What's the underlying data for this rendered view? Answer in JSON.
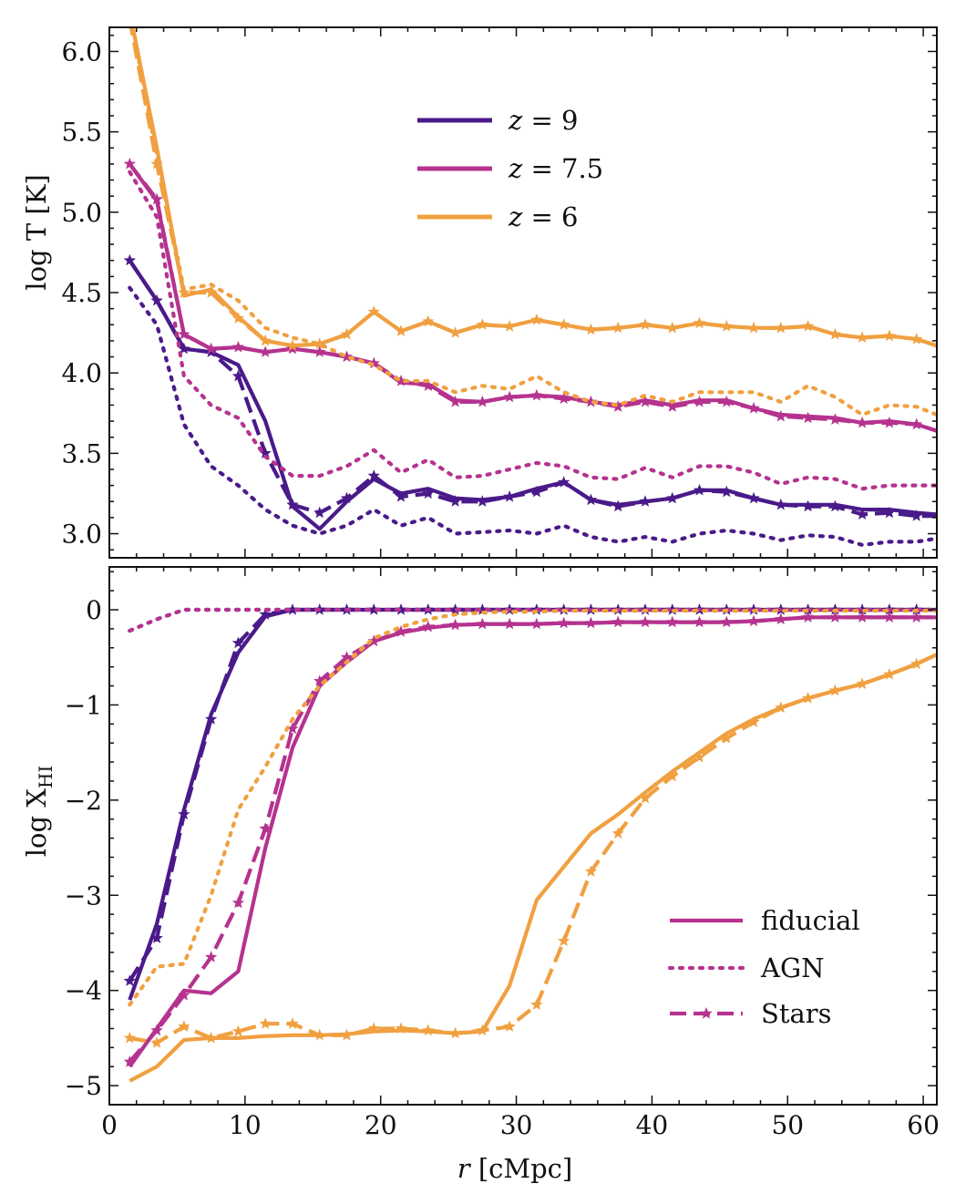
{
  "chart_data": [
    {
      "type": "line",
      "panel": "top",
      "ylabel": "log T [K]",
      "xlim": [
        0,
        61
      ],
      "ylim": [
        2.85,
        6.15
      ],
      "yticks": [
        3.0,
        3.5,
        4.0,
        4.5,
        5.0,
        5.5,
        6.0
      ],
      "ytick_labels": [
        "3.0",
        "3.5",
        "4.0",
        "4.5",
        "5.0",
        "5.5",
        "6.0"
      ],
      "x": [
        1.5,
        3.5,
        5.5,
        7.5,
        9.5,
        11.5,
        13.5,
        15.5,
        17.5,
        19.5,
        21.5,
        23.5,
        25.5,
        27.5,
        29.5,
        31.5,
        33.5,
        35.5,
        37.5,
        39.5,
        41.5,
        43.5,
        45.5,
        47.5,
        49.5,
        51.5,
        53.5,
        55.5,
        57.5,
        59.5,
        61.0
      ],
      "legend": {
        "position": "top-center",
        "entries": [
          {
            "label": "z=9",
            "label_main": "z",
            "label_rest": " = 9",
            "color": "#4a1a8a"
          },
          {
            "label": "z=7.5",
            "label_main": "z",
            "label_rest": " = 7.5",
            "color": "#b5338f"
          },
          {
            "label": "z=6",
            "label_main": "z",
            "label_rest": " = 6",
            "color": "#f0a040"
          }
        ]
      },
      "series": [
        {
          "redshift": "z=9",
          "color": "#4a1a8a",
          "model": "fiducial",
          "style": "solid",
          "values": [
            4.7,
            4.45,
            4.15,
            4.13,
            4.05,
            3.7,
            3.17,
            3.03,
            3.2,
            3.34,
            3.25,
            3.28,
            3.22,
            3.21,
            3.23,
            3.28,
            3.32,
            3.21,
            3.18,
            3.2,
            3.22,
            3.27,
            3.27,
            3.22,
            3.18,
            3.18,
            3.18,
            3.15,
            3.15,
            3.13,
            3.12
          ]
        },
        {
          "redshift": "z=9",
          "color": "#4a1a8a",
          "model": "AGN",
          "style": "dotted",
          "values": [
            4.53,
            4.3,
            3.68,
            3.42,
            3.3,
            3.15,
            3.05,
            3.0,
            3.05,
            3.15,
            3.05,
            3.1,
            3.0,
            3.01,
            3.02,
            3.0,
            3.05,
            2.98,
            2.95,
            2.98,
            2.95,
            3.0,
            3.02,
            3.0,
            2.96,
            2.99,
            2.98,
            2.93,
            2.95,
            2.95,
            2.97
          ]
        },
        {
          "redshift": "z=9",
          "color": "#4a1a8a",
          "model": "Stars",
          "style": "dashed",
          "values": [
            4.7,
            4.45,
            4.15,
            4.13,
            3.98,
            3.5,
            3.18,
            3.13,
            3.22,
            3.36,
            3.23,
            3.25,
            3.2,
            3.2,
            3.23,
            3.26,
            3.32,
            3.21,
            3.17,
            3.2,
            3.22,
            3.27,
            3.26,
            3.22,
            3.18,
            3.17,
            3.17,
            3.12,
            3.13,
            3.11,
            3.11
          ]
        },
        {
          "redshift": "z=7.5",
          "color": "#b5338f",
          "model": "fiducial",
          "style": "solid",
          "values": [
            5.3,
            5.07,
            4.24,
            4.15,
            4.16,
            4.13,
            4.15,
            4.13,
            4.1,
            4.06,
            3.94,
            3.93,
            3.83,
            3.82,
            3.85,
            3.86,
            3.85,
            3.82,
            3.8,
            3.83,
            3.8,
            3.83,
            3.83,
            3.78,
            3.74,
            3.73,
            3.72,
            3.69,
            3.7,
            3.68,
            3.64
          ]
        },
        {
          "redshift": "z=7.5",
          "color": "#b5338f",
          "model": "AGN",
          "style": "dotted",
          "values": [
            5.25,
            4.97,
            3.98,
            3.8,
            3.72,
            3.48,
            3.36,
            3.36,
            3.42,
            3.52,
            3.38,
            3.46,
            3.35,
            3.36,
            3.4,
            3.44,
            3.42,
            3.35,
            3.34,
            3.41,
            3.35,
            3.42,
            3.42,
            3.38,
            3.31,
            3.35,
            3.34,
            3.28,
            3.3,
            3.3,
            3.3
          ]
        },
        {
          "redshift": "z=7.5",
          "color": "#b5338f",
          "model": "Stars",
          "style": "dashed",
          "values": [
            5.3,
            5.08,
            4.24,
            4.15,
            4.16,
            4.13,
            4.15,
            4.13,
            4.1,
            4.06,
            3.95,
            3.92,
            3.82,
            3.82,
            3.85,
            3.86,
            3.84,
            3.82,
            3.79,
            3.82,
            3.79,
            3.82,
            3.82,
            3.78,
            3.73,
            3.72,
            3.71,
            3.69,
            3.69,
            3.68,
            3.64
          ]
        },
        {
          "redshift": "z=6",
          "color": "#f0a040",
          "model": "fiducial",
          "style": "solid",
          "values": [
            6.25,
            5.4,
            4.48,
            4.52,
            4.35,
            4.2,
            4.17,
            4.18,
            4.24,
            4.38,
            4.26,
            4.32,
            4.25,
            4.3,
            4.29,
            4.33,
            4.3,
            4.27,
            4.28,
            4.3,
            4.28,
            4.31,
            4.29,
            4.28,
            4.28,
            4.29,
            4.24,
            4.22,
            4.23,
            4.21,
            4.17
          ]
        },
        {
          "redshift": "z=6",
          "color": "#f0a040",
          "model": "AGN",
          "style": "dotted",
          "values": [
            6.25,
            5.35,
            4.52,
            4.55,
            4.45,
            4.28,
            4.22,
            4.18,
            4.1,
            4.05,
            3.95,
            3.95,
            3.88,
            3.92,
            3.9,
            3.98,
            3.88,
            3.82,
            3.8,
            3.86,
            3.82,
            3.88,
            3.88,
            3.88,
            3.82,
            3.92,
            3.85,
            3.74,
            3.8,
            3.79,
            3.74
          ]
        },
        {
          "redshift": "z=6",
          "color": "#f0a040",
          "model": "Stars",
          "style": "dashed",
          "values": [
            6.2,
            5.3,
            4.5,
            4.5,
            4.34,
            4.2,
            4.17,
            4.18,
            4.24,
            4.38,
            4.26,
            4.32,
            4.25,
            4.3,
            4.29,
            4.33,
            4.3,
            4.27,
            4.28,
            4.3,
            4.28,
            4.31,
            4.29,
            4.28,
            4.28,
            4.29,
            4.24,
            4.22,
            4.23,
            4.21,
            4.17
          ]
        }
      ]
    },
    {
      "type": "line",
      "panel": "bottom",
      "ylabel": "log X_HI",
      "ylabel_main": "log X",
      "ylabel_sub": "HI",
      "xlabel": "r [cMpc]",
      "xlabel_main": "r",
      "xlabel_rest": " [cMpc]",
      "xlim": [
        0,
        61
      ],
      "ylim": [
        -5.2,
        0.45
      ],
      "xticks": [
        0,
        10,
        20,
        30,
        40,
        50,
        60
      ],
      "xtick_labels": [
        "0",
        "10",
        "20",
        "30",
        "40",
        "50",
        "60"
      ],
      "yticks": [
        -5,
        -4,
        -3,
        -2,
        -1,
        0
      ],
      "ytick_labels": [
        "−5",
        "−4",
        "−3",
        "−2",
        "−1",
        "0"
      ],
      "x": [
        1.5,
        3.5,
        5.5,
        7.5,
        9.5,
        11.5,
        13.5,
        15.5,
        17.5,
        19.5,
        21.5,
        23.5,
        25.5,
        27.5,
        29.5,
        31.5,
        33.5,
        35.5,
        37.5,
        39.5,
        41.5,
        43.5,
        45.5,
        47.5,
        49.5,
        51.5,
        53.5,
        55.5,
        57.5,
        59.5,
        61.0
      ],
      "legend": {
        "position": "bottom-right",
        "entries": [
          {
            "label": "fiducial",
            "style": "solid",
            "color": "#b5338f"
          },
          {
            "label": "AGN",
            "style": "dotted",
            "color": "#b5338f"
          },
          {
            "label": "Stars",
            "style": "dashed",
            "marker": "star",
            "color": "#b5338f"
          }
        ]
      },
      "series": [
        {
          "redshift": "z=9",
          "color": "#4a1a8a",
          "model": "fiducial",
          "style": "solid",
          "values": [
            -4.1,
            -3.3,
            -2.1,
            -1.1,
            -0.45,
            -0.07,
            0.0,
            0.0,
            0.0,
            0.0,
            0.0,
            0.0,
            0.0,
            0.0,
            0.0,
            0.0,
            0.0,
            0.0,
            0.0,
            0.0,
            0.0,
            0.0,
            0.0,
            0.0,
            0.0,
            0.0,
            0.0,
            0.0,
            0.0,
            0.0,
            0.0
          ]
        },
        {
          "redshift": "z=9",
          "color": "#4a1a8a",
          "model": "AGN",
          "style": "dotted",
          "values": [
            -0.22,
            -0.1,
            0.0,
            0.0,
            0.0,
            0.0,
            0.0,
            0.0,
            0.0,
            0.0,
            0.0,
            0.0,
            0.0,
            0.0,
            0.0,
            0.0,
            0.0,
            0.0,
            0.0,
            0.0,
            0.0,
            0.0,
            0.0,
            0.0,
            0.0,
            0.0,
            0.0,
            0.0,
            0.0,
            0.0,
            0.0
          ]
        },
        {
          "redshift": "z=9",
          "color": "#4a1a8a",
          "model": "Stars",
          "style": "dashed",
          "values": [
            -3.9,
            -3.45,
            -2.15,
            -1.15,
            -0.35,
            -0.05,
            0.0,
            0.0,
            0.0,
            0.0,
            0.0,
            0.0,
            0.0,
            0.0,
            0.0,
            0.0,
            0.0,
            0.0,
            0.0,
            0.0,
            0.0,
            0.0,
            0.0,
            0.0,
            0.0,
            0.0,
            0.0,
            0.0,
            0.0,
            0.0,
            0.0
          ]
        },
        {
          "redshift": "z=7.5",
          "color": "#b5338f",
          "model": "fiducial",
          "style": "solid",
          "values": [
            -4.8,
            -4.4,
            -4.0,
            -4.03,
            -3.8,
            -2.5,
            -1.45,
            -0.8,
            -0.55,
            -0.33,
            -0.24,
            -0.19,
            -0.16,
            -0.15,
            -0.15,
            -0.15,
            -0.14,
            -0.14,
            -0.13,
            -0.13,
            -0.13,
            -0.13,
            -0.13,
            -0.12,
            -0.1,
            -0.08,
            -0.08,
            -0.08,
            -0.08,
            -0.08,
            -0.08
          ]
        },
        {
          "redshift": "z=7.5",
          "color": "#b5338f",
          "model": "AGN",
          "style": "dotted",
          "values": [
            -0.22,
            -0.1,
            0.0,
            0.0,
            0.0,
            0.0,
            0.0,
            0.0,
            0.0,
            0.0,
            0.0,
            0.0,
            0.0,
            0.0,
            0.0,
            0.0,
            0.0,
            0.0,
            0.0,
            0.0,
            0.0,
            0.0,
            0.0,
            0.0,
            0.0,
            0.0,
            0.0,
            0.0,
            0.0,
            0.0,
            0.0
          ]
        },
        {
          "redshift": "z=7.5",
          "color": "#b5338f",
          "model": "Stars",
          "style": "dashed",
          "values": [
            -4.75,
            -4.42,
            -4.05,
            -3.65,
            -3.08,
            -2.3,
            -1.25,
            -0.75,
            -0.5,
            -0.33,
            -0.23,
            -0.18,
            -0.16,
            -0.15,
            -0.15,
            -0.15,
            -0.14,
            -0.14,
            -0.13,
            -0.13,
            -0.13,
            -0.13,
            -0.13,
            -0.12,
            -0.1,
            -0.08,
            -0.08,
            -0.08,
            -0.08,
            -0.08,
            -0.08
          ]
        },
        {
          "redshift": "z=6",
          "color": "#f0a040",
          "model": "fiducial",
          "style": "solid",
          "values": [
            -4.95,
            -4.8,
            -4.52,
            -4.5,
            -4.5,
            -4.48,
            -4.47,
            -4.47,
            -4.46,
            -4.43,
            -4.42,
            -4.43,
            -4.45,
            -4.43,
            -3.95,
            -3.05,
            -2.7,
            -2.35,
            -2.15,
            -1.92,
            -1.7,
            -1.5,
            -1.3,
            -1.15,
            -1.03,
            -0.93,
            -0.85,
            -0.78,
            -0.68,
            -0.57,
            -0.47
          ]
        },
        {
          "redshift": "z=6",
          "color": "#f0a040",
          "model": "AGN",
          "style": "dotted",
          "values": [
            -4.15,
            -3.75,
            -3.72,
            -3.0,
            -2.1,
            -1.65,
            -1.15,
            -0.8,
            -0.55,
            -0.3,
            -0.18,
            -0.1,
            -0.05,
            -0.03,
            -0.02,
            -0.02,
            -0.01,
            -0.01,
            -0.01,
            -0.01,
            -0.01,
            -0.01,
            -0.01,
            -0.01,
            -0.01,
            -0.01,
            -0.01,
            -0.01,
            -0.01,
            -0.01,
            -0.01
          ]
        },
        {
          "redshift": "z=6",
          "color": "#f0a040",
          "model": "Stars",
          "style": "dashed",
          "values": [
            -4.5,
            -4.55,
            -4.38,
            -4.5,
            -4.43,
            -4.35,
            -4.35,
            -4.47,
            -4.47,
            -4.4,
            -4.4,
            -4.42,
            -4.45,
            -4.42,
            -4.38,
            -4.15,
            -3.48,
            -2.75,
            -2.35,
            -1.98,
            -1.75,
            -1.55,
            -1.35,
            -1.18,
            -1.03,
            -0.93,
            -0.85,
            -0.78,
            -0.68,
            -0.57,
            -0.47
          ]
        }
      ]
    }
  ]
}
